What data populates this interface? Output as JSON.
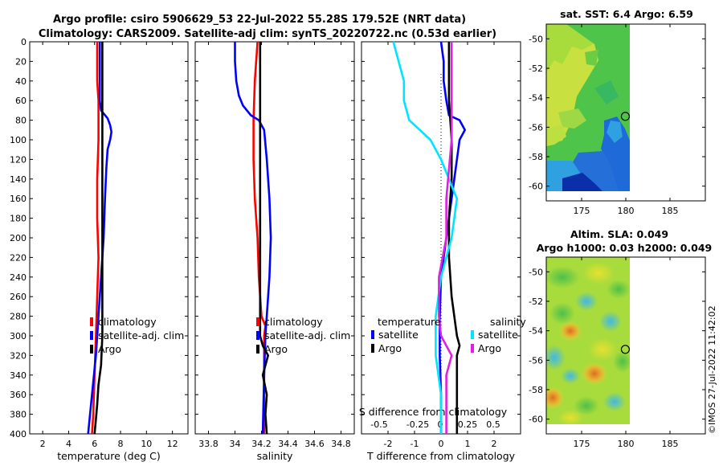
{
  "header": {
    "title_line1": "Argo profile: csiro 5906629_53 22-Jul-2022 55.28S 179.52E (NRT data)",
    "title_line2": "Climatology: CARS2009. Satellite-adj clim: synTS_20220722.nc (0.53d earlier)"
  },
  "sst_map_title": "sat. SST: 6.4 Argo: 6.59",
  "sla_map_title_line1": "Altim. SLA: 0.049",
  "sla_map_title_line2": "Argo h1000: 0.03 h2000: 0.049",
  "copyright": "©IMOS 27-Jul-2022 11:42:02",
  "colors": {
    "climatology": "#ff0000",
    "satellite": "#0000ff",
    "argo": "#000000",
    "cyan": "#00e5ff",
    "magenta": "#e020e0"
  },
  "chart_data": [
    {
      "type": "line",
      "title": "",
      "xlabel": "temperature (deg C)",
      "ylabel": "",
      "xlim": [
        1,
        13.2
      ],
      "ylim": [
        400,
        0
      ],
      "xticks": [
        2,
        4,
        6,
        8,
        10,
        12
      ],
      "yticks": [
        0,
        20,
        40,
        60,
        80,
        100,
        120,
        140,
        160,
        180,
        200,
        220,
        240,
        260,
        280,
        300,
        320,
        340,
        360,
        380,
        400
      ],
      "legend": [
        "climatology",
        "satellite-adj. clim",
        "Argo"
      ],
      "series": [
        {
          "name": "climatology",
          "color": "#ff0000",
          "depth": [
            0,
            20,
            40,
            60,
            80,
            100,
            140,
            180,
            220,
            260,
            300,
            340,
            380,
            400
          ],
          "values": [
            6.2,
            6.2,
            6.2,
            6.3,
            6.3,
            6.3,
            6.2,
            6.2,
            6.3,
            6.2,
            6.1,
            6.0,
            5.9,
            5.8
          ]
        },
        {
          "name": "satellite-adj. clim",
          "color": "#0000ff",
          "depth": [
            0,
            20,
            40,
            60,
            70,
            78,
            85,
            92,
            100,
            110,
            130,
            160,
            200,
            240,
            280,
            320,
            360,
            400
          ],
          "values": [
            6.4,
            6.4,
            6.4,
            6.4,
            6.5,
            7.0,
            7.2,
            7.3,
            7.2,
            7.0,
            6.9,
            6.8,
            6.7,
            6.5,
            6.3,
            6.1,
            5.8,
            5.5
          ]
        },
        {
          "name": "Argo",
          "color": "#000000",
          "depth": [
            0,
            10,
            20,
            40,
            60,
            80,
            100,
            140,
            180,
            220,
            260,
            300,
            330,
            350,
            370,
            385,
            400
          ],
          "values": [
            6.6,
            6.6,
            6.6,
            6.6,
            6.6,
            6.6,
            6.6,
            6.6,
            6.6,
            6.6,
            6.6,
            6.6,
            6.5,
            6.3,
            6.2,
            6.1,
            6.0
          ]
        }
      ]
    },
    {
      "type": "line",
      "xlabel": "salinity",
      "xlim": [
        33.7,
        34.9
      ],
      "ylim": [
        400,
        0
      ],
      "xticks": [
        33.8,
        34,
        34.2,
        34.4,
        34.6,
        34.8
      ],
      "legend": [
        "climatology",
        "satellite-adj. clim",
        "Argo"
      ],
      "series": [
        {
          "name": "climatology",
          "color": "#ff0000",
          "depth": [
            0,
            20,
            40,
            80,
            120,
            160,
            200,
            240,
            280,
            290,
            300,
            340,
            400
          ],
          "values": [
            34.17,
            34.16,
            34.15,
            34.14,
            34.14,
            34.15,
            34.17,
            34.18,
            34.2,
            34.23,
            34.22,
            34.22,
            34.22
          ]
        },
        {
          "name": "satellite-adj. clim",
          "color": "#0000ff",
          "depth": [
            0,
            20,
            40,
            55,
            65,
            75,
            80,
            90,
            120,
            160,
            200,
            240,
            300,
            340,
            400
          ],
          "values": [
            34.0,
            34.0,
            34.01,
            34.03,
            34.06,
            34.12,
            34.18,
            34.22,
            34.24,
            34.26,
            34.27,
            34.26,
            34.23,
            34.22,
            34.21
          ]
        },
        {
          "name": "Argo",
          "color": "#000000",
          "depth": [
            0,
            20,
            60,
            100,
            140,
            180,
            220,
            260,
            300,
            310,
            320,
            330,
            340,
            360,
            380,
            400
          ],
          "values": [
            34.19,
            34.19,
            34.19,
            34.19,
            34.19,
            34.19,
            34.19,
            34.19,
            34.19,
            34.21,
            34.25,
            34.23,
            34.21,
            34.24,
            34.23,
            34.24
          ]
        }
      ]
    },
    {
      "type": "line",
      "xlabel": "T difference from climatology",
      "xlim": [
        -3,
        3
      ],
      "ylim": [
        400,
        0
      ],
      "xticks": [
        -2,
        -1,
        0,
        1,
        2
      ],
      "top_axis_label": "S difference from climatology",
      "top_ticks": [
        "-0.5",
        "-0.25",
        "0",
        "0.25",
        "0.5"
      ],
      "legend_headers": [
        "temperature",
        "salinity"
      ],
      "legend": [
        "satellite",
        "Argo",
        "satellite",
        "Argo"
      ],
      "series": [
        {
          "name": "T satellite",
          "color": "#0000ff",
          "depth": [
            0,
            20,
            40,
            60,
            75,
            80,
            90,
            100,
            120,
            160,
            200,
            240,
            280,
            320,
            360,
            400
          ],
          "values": [
            0,
            0.1,
            0.1,
            0.2,
            0.3,
            0.7,
            0.9,
            0.7,
            0.6,
            0.4,
            0.2,
            0,
            -0.05,
            -0.05,
            0,
            0
          ]
        },
        {
          "name": "T Argo",
          "color": "#000000",
          "depth": [
            0,
            20,
            60,
            100,
            140,
            180,
            220,
            260,
            300,
            310,
            320,
            340,
            360,
            380,
            400
          ],
          "values": [
            0.3,
            0.3,
            0.3,
            0.4,
            0.4,
            0.3,
            0.3,
            0.4,
            0.6,
            0.7,
            0.6,
            0.6,
            0.6,
            0.6,
            0.6
          ]
        },
        {
          "name": "S satellite",
          "color": "#00e5ff",
          "depth": [
            0,
            20,
            40,
            60,
            80,
            100,
            120,
            160,
            200,
            240,
            280,
            320,
            360,
            400
          ],
          "values": [
            -0.45,
            -0.4,
            -0.35,
            -0.35,
            -0.3,
            -0.1,
            0,
            0.15,
            0.1,
            0,
            -0.05,
            -0.05,
            0,
            0
          ]
        },
        {
          "name": "S Argo",
          "color": "#e020e0",
          "depth": [
            0,
            20,
            60,
            100,
            160,
            200,
            240,
            280,
            300,
            310,
            320,
            340,
            360,
            400
          ],
          "values": [
            0.1,
            0.1,
            0.1,
            0.1,
            0.05,
            0.05,
            -0.02,
            -0.02,
            0,
            0.05,
            0.1,
            0.05,
            0.05,
            0.05
          ]
        }
      ]
    },
    {
      "type": "heatmap",
      "title": "sat. SST: 6.4 Argo: 6.59",
      "xlim": [
        171,
        189
      ],
      "ylim": [
        -61,
        -49
      ],
      "xticks": [
        175,
        180,
        185
      ],
      "yticks": [
        -50,
        -52,
        -54,
        -56,
        -58,
        -60
      ],
      "marker": {
        "lon": 179.52,
        "lat": -55.28
      }
    },
    {
      "type": "heatmap",
      "title": "Altim. SLA: 0.049",
      "xlim": [
        171,
        189
      ],
      "ylim": [
        -61,
        -49
      ],
      "xticks": [
        175,
        180,
        185
      ],
      "yticks": [
        -50,
        -52,
        -54,
        -56,
        -58,
        -60
      ],
      "marker": {
        "lon": 179.52,
        "lat": -55.28
      }
    }
  ]
}
